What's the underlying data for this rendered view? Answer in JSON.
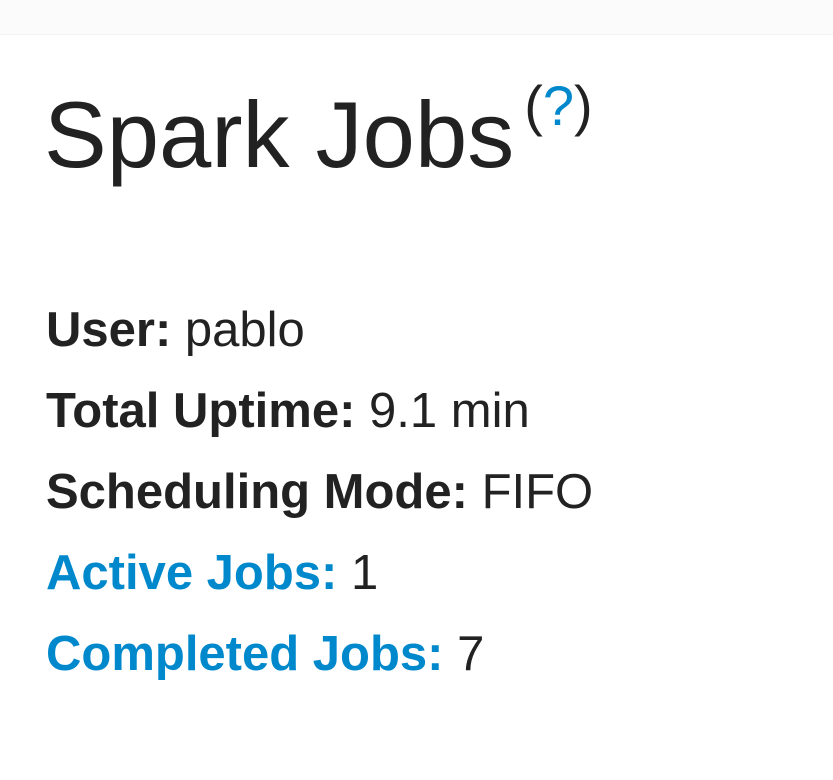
{
  "title": "Spark Jobs",
  "help_link": "?",
  "summary": {
    "user_label": "User:",
    "user_value": "pablo",
    "uptime_label": "Total Uptime:",
    "uptime_value": "9.1 min",
    "mode_label": "Scheduling Mode:",
    "mode_value": "FIFO",
    "active_label": "Active Jobs:",
    "active_value": "1",
    "completed_label": "Completed Jobs:",
    "completed_value": "7"
  },
  "colors": {
    "link": "#0088cc",
    "text": "#222222"
  }
}
